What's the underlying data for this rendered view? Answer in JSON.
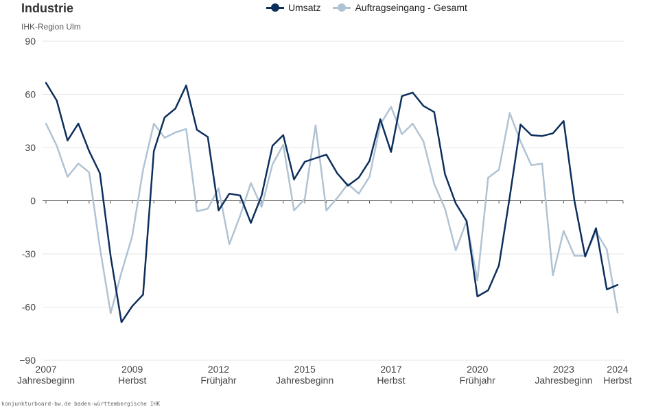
{
  "header": {
    "title": "Industrie",
    "subtitle": "IHK-Region Ulm"
  },
  "footer": {
    "source": "konjunkturboard-bw.de baden-württembergische IHK"
  },
  "colors": {
    "umsatz": "#0d2f5c",
    "auftragseingang": "#b0c3d3",
    "grid": "#e6e6e6",
    "zero": "#555555"
  },
  "chart_data": {
    "type": "line",
    "title": "Industrie",
    "subtitle": "IHK-Region Ulm",
    "ylim": [
      -90,
      90
    ],
    "y_ticks": [
      90,
      60,
      30,
      0,
      -30,
      -60,
      -90
    ],
    "y_tick_labels": [
      "90",
      "60",
      "30",
      "0",
      "-30",
      "-60",
      "−90"
    ],
    "x_ticks": [
      {
        "index": 0,
        "year": "2007",
        "season": "Jahresbeginn"
      },
      {
        "index": 8,
        "year": "2009",
        "season": "Herbst"
      },
      {
        "index": 16,
        "year": "2012",
        "season": "Frühjahr"
      },
      {
        "index": 24,
        "year": "2015",
        "season": "Jahresbeginn"
      },
      {
        "index": 32,
        "year": "2017",
        "season": "Herbst"
      },
      {
        "index": 40,
        "year": "2020",
        "season": "Frühjahr"
      },
      {
        "index": 48,
        "year": "2023",
        "season": "Jahresbeginn"
      },
      {
        "index": 53,
        "year": "2024",
        "season": "Herbst"
      }
    ],
    "legend_position": "top-center",
    "grid": true,
    "series": [
      {
        "name": "Umsatz",
        "values": [
          66.5,
          56.5,
          34,
          43.5,
          28,
          15.5,
          -31.5,
          -68.5,
          -59.5,
          -53,
          28,
          47,
          52,
          65,
          40,
          36,
          -5.5,
          4,
          3,
          -12.5,
          3,
          31,
          37,
          12,
          22,
          24,
          26,
          15.5,
          8.5,
          13,
          22.5,
          46,
          27.5,
          59,
          61,
          53.5,
          50,
          15,
          -1.5,
          -11.5,
          -54,
          -50.5,
          -36.5,
          2,
          43,
          37,
          36.5,
          38,
          45,
          0,
          -31.5,
          -15.5,
          -50,
          -47.5
        ]
      },
      {
        "name": "Auftragseingang - Gesamt",
        "values": [
          43.5,
          31,
          13.5,
          21,
          16,
          -26.5,
          -63.5,
          -40.5,
          -20,
          17.5,
          43.5,
          35.5,
          38.5,
          40.5,
          -6,
          -4.5,
          7,
          -24.5,
          -8.5,
          10,
          -3.5,
          20.5,
          31.5,
          -5.5,
          1,
          42.5,
          -5.5,
          1.5,
          9.5,
          4,
          13.5,
          43,
          53,
          37.5,
          43.5,
          33.5,
          9.5,
          -4.5,
          -28,
          -11.5,
          -45,
          13,
          17.5,
          49.5,
          33.5,
          20,
          21,
          -42,
          -17,
          -31,
          -31,
          -17.5,
          -27.5,
          -63
        ]
      }
    ]
  }
}
